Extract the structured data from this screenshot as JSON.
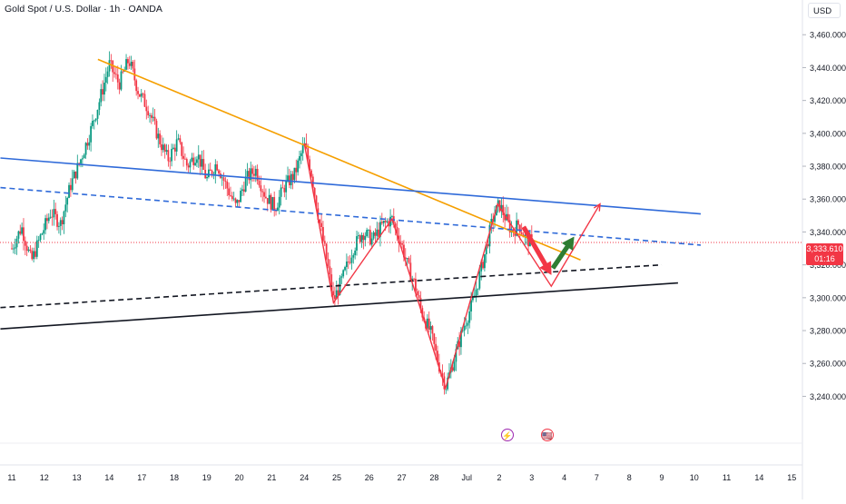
{
  "header": {
    "symbol_title": "Gold Spot / U.S. Dollar · 1h · OANDA",
    "currency": "USD"
  },
  "last_price": {
    "value": "3,333.610",
    "countdown": "01:16",
    "color": "#f23645"
  },
  "events": [
    {
      "icon": "lightning-icon",
      "glyph": "⚡",
      "color": "#9c27b0"
    },
    {
      "icon": "us-flag-icon",
      "glyph": "🇺🇸",
      "color": "#f23645"
    }
  ],
  "chart_data": {
    "type": "candlestick",
    "title": "Gold Spot / U.S. Dollar · 1h · OANDA",
    "ylim": [
      3230,
      3470
    ],
    "y_ticks": [
      3240,
      3260,
      3280,
      3300,
      3320,
      3340,
      3360,
      3380,
      3400,
      3420,
      3440,
      3460
    ],
    "y_tick_labels": [
      "3,240.000",
      "3,260.000",
      "3,280.000",
      "3,300.000",
      "3,320.000",
      "3,340.000",
      "3,360.000",
      "3,380.000",
      "3,400.000",
      "3,420.000",
      "3,440.000",
      "3,460.000"
    ],
    "x_ticks": [
      "11",
      "12",
      "13",
      "14",
      "17",
      "18",
      "19",
      "20",
      "21",
      "24",
      "25",
      "26",
      "27",
      "28",
      "Jul",
      "2",
      "3",
      "4",
      "7",
      "8",
      "9",
      "10",
      "11",
      "14",
      "15"
    ],
    "x_tick_positions": [
      0,
      1,
      2,
      3,
      4,
      5,
      6,
      7,
      8,
      9,
      10,
      11,
      12,
      13,
      14,
      15,
      16,
      17,
      18,
      19,
      20,
      21,
      22,
      23,
      24
    ],
    "x_range": [
      -0.35,
      24.5
    ],
    "price_path": [
      [
        0.0,
        3330
      ],
      [
        0.3,
        3343
      ],
      [
        0.6,
        3322
      ],
      [
        0.9,
        3338
      ],
      [
        1.2,
        3352
      ],
      [
        1.5,
        3345
      ],
      [
        1.8,
        3368
      ],
      [
        2.1,
        3383
      ],
      [
        2.4,
        3400
      ],
      [
        2.7,
        3420
      ],
      [
        3.0,
        3442
      ],
      [
        3.3,
        3430
      ],
      [
        3.6,
        3445
      ],
      [
        3.9,
        3425
      ],
      [
        4.2,
        3415
      ],
      [
        4.5,
        3398
      ],
      [
        4.8,
        3384
      ],
      [
        5.1,
        3395
      ],
      [
        5.4,
        3380
      ],
      [
        5.7,
        3388
      ],
      [
        6.0,
        3372
      ],
      [
        6.3,
        3382
      ],
      [
        6.6,
        3368
      ],
      [
        6.9,
        3355
      ],
      [
        7.2,
        3372
      ],
      [
        7.5,
        3378
      ],
      [
        7.8,
        3362
      ],
      [
        8.1,
        3355
      ],
      [
        8.4,
        3368
      ],
      [
        8.7,
        3375
      ],
      [
        9.0,
        3393
      ],
      [
        9.2,
        3378
      ],
      [
        9.45,
        3348
      ],
      [
        9.7,
        3322
      ],
      [
        9.9,
        3298
      ],
      [
        10.2,
        3313
      ],
      [
        10.5,
        3330
      ],
      [
        10.8,
        3340
      ],
      [
        11.1,
        3335
      ],
      [
        11.4,
        3344
      ],
      [
        11.7,
        3348
      ],
      [
        12.0,
        3332
      ],
      [
        12.2,
        3318
      ],
      [
        12.4,
        3308
      ],
      [
        12.6,
        3292
      ],
      [
        12.9,
        3278
      ],
      [
        13.1,
        3262
      ],
      [
        13.35,
        3246
      ],
      [
        13.6,
        3262
      ],
      [
        13.9,
        3282
      ],
      [
        14.2,
        3298
      ],
      [
        14.5,
        3322
      ],
      [
        14.8,
        3348
      ],
      [
        15.0,
        3357
      ],
      [
        15.2,
        3348
      ],
      [
        15.4,
        3340
      ],
      [
        15.6,
        3345
      ],
      [
        15.8,
        3336
      ],
      [
        16.0,
        3333.61
      ]
    ],
    "horizontal_lines": [
      {
        "name": "last-price",
        "value": 3333.61,
        "color": "#f23645",
        "style": "dotted"
      }
    ],
    "trendlines": [
      {
        "name": "orange-resistance",
        "points": [
          [
            2.65,
            3445
          ],
          [
            17.5,
            3323
          ]
        ],
        "color": "#f59f00",
        "style": "solid"
      },
      {
        "name": "blue-solid-resistance",
        "points": [
          [
            -0.35,
            3385
          ],
          [
            21.2,
            3351
          ]
        ],
        "color": "#2f6ad9",
        "style": "solid"
      },
      {
        "name": "blue-dashed",
        "points": [
          [
            -0.35,
            3367
          ],
          [
            21.2,
            3332
          ]
        ],
        "color": "#2f6ad9",
        "style": "dashed"
      },
      {
        "name": "black-solid-support",
        "points": [
          [
            -0.35,
            3281
          ],
          [
            20.5,
            3309
          ]
        ],
        "color": "#131722",
        "style": "solid"
      },
      {
        "name": "black-dashed-support",
        "points": [
          [
            -0.35,
            3294
          ],
          [
            20.0,
            3320
          ]
        ],
        "color": "#131722",
        "style": "dashed"
      }
    ],
    "pattern_path": {
      "color": "#f23645",
      "points": [
        [
          9.0,
          3394
        ],
        [
          9.9,
          3297
        ],
        [
          11.7,
          3348
        ],
        [
          13.35,
          3245
        ],
        [
          14.95,
          3357
        ],
        [
          16.6,
          3307
        ],
        [
          18.1,
          3357
        ]
      ]
    },
    "arrows": [
      {
        "name": "down-arrow",
        "from": [
          15.75,
          3343
        ],
        "to": [
          16.6,
          3314
        ],
        "color": "#f23645"
      },
      {
        "name": "up-arrow",
        "from": [
          16.65,
          3318
        ],
        "to": [
          17.3,
          3337
        ],
        "color": "#2e7d32"
      }
    ]
  }
}
